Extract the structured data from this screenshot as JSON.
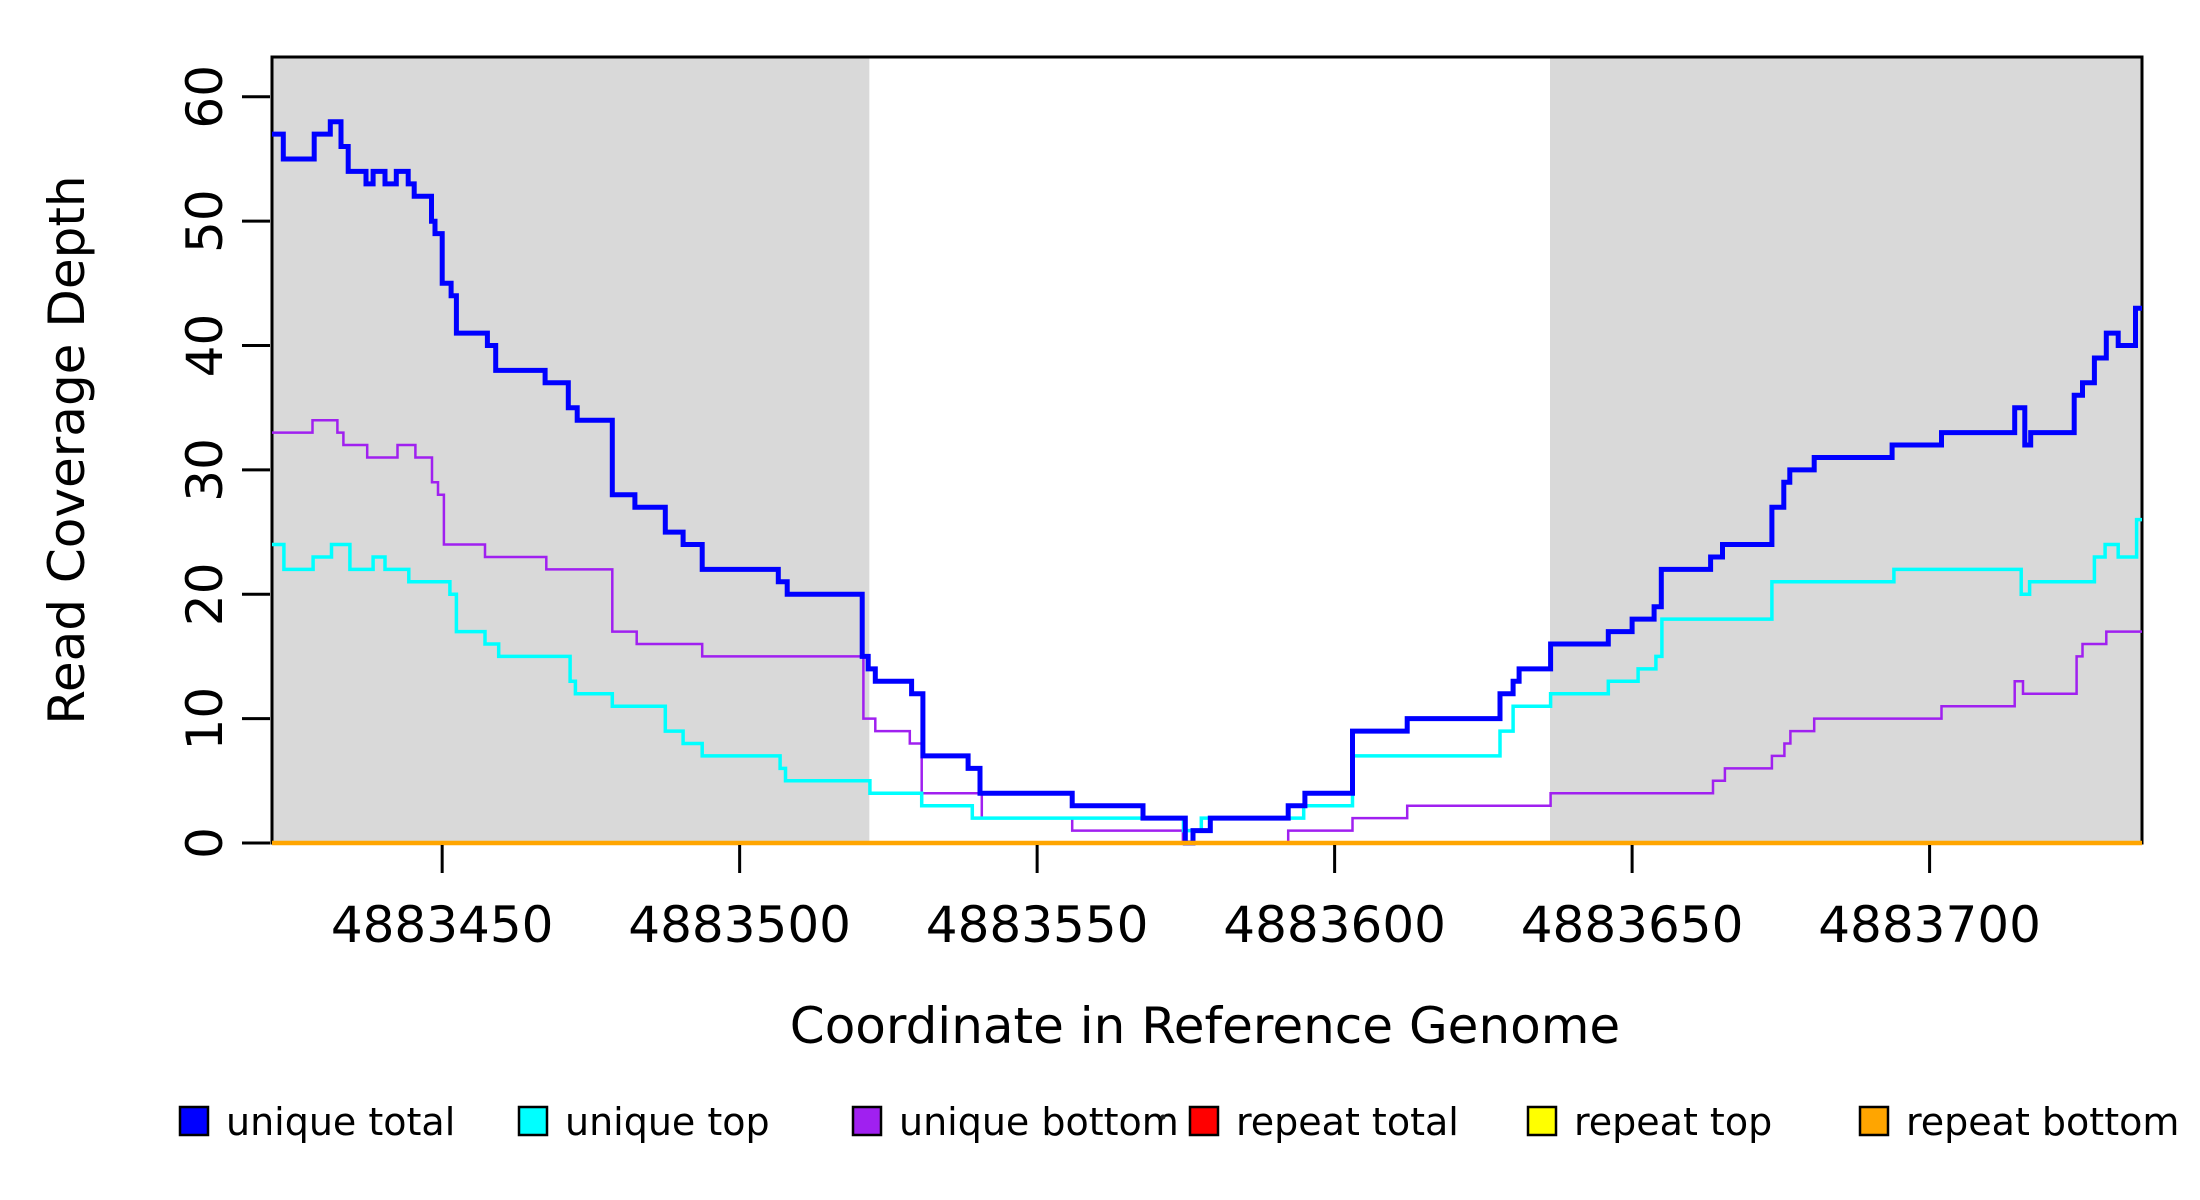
{
  "figure": {
    "background": "#FFFFFF",
    "plot_border_color": "#000000"
  },
  "chart_data": {
    "type": "line",
    "subtype": "step",
    "title": "",
    "xlabel": "Coordinate in Reference Genome",
    "ylabel": "Read Coverage Depth",
    "xlim": [
      4883421.4,
      4883735.7
    ],
    "ylim": [
      0,
      63.2
    ],
    "grid": "off",
    "plot_bg": "#FFFFFF",
    "x_ticks": [
      4883450,
      4883500,
      4883550,
      4883600,
      4883650,
      4883700
    ],
    "x_tick_labels": [
      "4883450",
      "4883500",
      "4883550",
      "4883600",
      "4883650",
      "4883700"
    ],
    "y_ticks": [
      0,
      10,
      20,
      30,
      40,
      50,
      60
    ],
    "y_tick_labels": [
      "0",
      "10",
      "20",
      "30",
      "40",
      "50",
      "60"
    ],
    "shaded_regions": [
      {
        "name": "left-gray-band",
        "x0": 4883421.4,
        "x1": 4883521.8,
        "color": "#D9D9D9"
      },
      {
        "name": "right-gray-band",
        "x0": 4883636.2,
        "x1": 4883735.7,
        "color": "#D9D9D9"
      }
    ],
    "series": [
      {
        "name": "unique bottom",
        "color": "#A020F0",
        "line_width": 2.5,
        "points": [
          [
            4883421.4,
            33
          ],
          [
            4883428.2,
            34
          ],
          [
            4883432.4,
            33
          ],
          [
            4883433.4,
            32
          ],
          [
            4883437.4,
            31
          ],
          [
            4883442.5,
            32
          ],
          [
            4883445.5,
            31
          ],
          [
            4883448.3,
            29
          ],
          [
            4883449.3,
            28
          ],
          [
            4883450.3,
            24
          ],
          [
            4883457.2,
            23
          ],
          [
            4883467.5,
            22
          ],
          [
            4883478.6,
            17
          ],
          [
            4883482.7,
            16
          ],
          [
            4883493.7,
            15
          ],
          [
            4883520.8,
            10
          ],
          [
            4883522.8,
            9
          ],
          [
            4883528.6,
            8
          ],
          [
            4883530.6,
            4
          ],
          [
            4883540.7,
            2
          ],
          [
            4883555.9,
            1
          ],
          [
            4883574.5,
            0
          ],
          [
            4883592.2,
            1
          ],
          [
            4883603.0,
            2
          ],
          [
            4883612.2,
            3
          ],
          [
            4883636.3,
            4
          ],
          [
            4883663.6,
            5
          ],
          [
            4883665.6,
            6
          ],
          [
            4883673.5,
            7
          ],
          [
            4883675.6,
            8
          ],
          [
            4883676.6,
            9
          ],
          [
            4883680.6,
            10
          ],
          [
            4883702.0,
            11
          ],
          [
            4883714.3,
            13
          ],
          [
            4883715.7,
            12
          ],
          [
            4883724.7,
            15
          ],
          [
            4883725.7,
            16
          ],
          [
            4883729.7,
            17
          ]
        ]
      },
      {
        "name": "unique top",
        "color": "#00FFFF",
        "line_width": 3.5,
        "points": [
          [
            4883421.4,
            24
          ],
          [
            4883423.4,
            22
          ],
          [
            4883428.3,
            23
          ],
          [
            4883431.4,
            24
          ],
          [
            4883434.5,
            22
          ],
          [
            4883438.4,
            23
          ],
          [
            4883440.4,
            22
          ],
          [
            4883444.4,
            21
          ],
          [
            4883451.3,
            20
          ],
          [
            4883452.4,
            17
          ],
          [
            4883457.2,
            16
          ],
          [
            4883459.5,
            15
          ],
          [
            4883471.5,
            13
          ],
          [
            4883472.4,
            12
          ],
          [
            4883478.6,
            11
          ],
          [
            4883487.5,
            9
          ],
          [
            4883490.5,
            8
          ],
          [
            4883493.7,
            7
          ],
          [
            4883506.8,
            6
          ],
          [
            4883507.7,
            5
          ],
          [
            4883521.9,
            4
          ],
          [
            4883530.6,
            3
          ],
          [
            4883539.1,
            2
          ],
          [
            4883574.6,
            1
          ],
          [
            4883577.6,
            2
          ],
          [
            4883594.8,
            3
          ],
          [
            4883603.0,
            7
          ],
          [
            4883627.8,
            9
          ],
          [
            4883630.0,
            11
          ],
          [
            4883636.3,
            12
          ],
          [
            4883646.0,
            13
          ],
          [
            4883651.0,
            14
          ],
          [
            4883654.0,
            15
          ],
          [
            4883655.0,
            18
          ],
          [
            4883673.5,
            21
          ],
          [
            4883694.0,
            22
          ],
          [
            4883715.4,
            20
          ],
          [
            4883716.8,
            21
          ],
          [
            4883727.7,
            23
          ],
          [
            4883729.5,
            24
          ],
          [
            4883731.7,
            23
          ],
          [
            4883734.8,
            26
          ]
        ]
      },
      {
        "name": "unique total",
        "color": "#0000FF",
        "line_width": 5,
        "points": [
          [
            4883421.4,
            57
          ],
          [
            4883423.3,
            55
          ],
          [
            4883428.5,
            57
          ],
          [
            4883431.2,
            58
          ],
          [
            4883433.0,
            56
          ],
          [
            4883434.2,
            54
          ],
          [
            4883437.2,
            53
          ],
          [
            4883438.4,
            54
          ],
          [
            4883440.4,
            53
          ],
          [
            4883442.3,
            54
          ],
          [
            4883444.3,
            53
          ],
          [
            4883445.3,
            52
          ],
          [
            4883448.2,
            50
          ],
          [
            4883448.8,
            49
          ],
          [
            4883450.0,
            45
          ],
          [
            4883451.5,
            44
          ],
          [
            4883452.4,
            41
          ],
          [
            4883457.6,
            40
          ],
          [
            4883459.0,
            38
          ],
          [
            4883467.3,
            37
          ],
          [
            4883471.2,
            35
          ],
          [
            4883472.7,
            34
          ],
          [
            4883478.6,
            28
          ],
          [
            4883482.4,
            27
          ],
          [
            4883487.5,
            25
          ],
          [
            4883490.5,
            24
          ],
          [
            4883493.7,
            22
          ],
          [
            4883506.5,
            21
          ],
          [
            4883508.0,
            20
          ],
          [
            4883520.6,
            15
          ],
          [
            4883521.6,
            14
          ],
          [
            4883522.8,
            13
          ],
          [
            4883528.9,
            12
          ],
          [
            4883530.8,
            7
          ],
          [
            4883538.4,
            6
          ],
          [
            4883540.4,
            4
          ],
          [
            4883555.9,
            3
          ],
          [
            4883567.8,
            2
          ],
          [
            4883574.9,
            0
          ],
          [
            4883576.2,
            1
          ],
          [
            4883579.1,
            2
          ],
          [
            4883592.2,
            3
          ],
          [
            4883595.0,
            4
          ],
          [
            4883603.0,
            9
          ],
          [
            4883612.2,
            10
          ],
          [
            4883627.8,
            12
          ],
          [
            4883630.0,
            13
          ],
          [
            4883631.0,
            14
          ],
          [
            4883636.3,
            16
          ],
          [
            4883646.0,
            17
          ],
          [
            4883650.0,
            18
          ],
          [
            4883653.7,
            19
          ],
          [
            4883654.9,
            22
          ],
          [
            4883663.2,
            23
          ],
          [
            4883665.2,
            24
          ],
          [
            4883673.5,
            27
          ],
          [
            4883675.5,
            29
          ],
          [
            4883676.5,
            30
          ],
          [
            4883680.6,
            31
          ],
          [
            4883693.7,
            32
          ],
          [
            4883702.0,
            33
          ],
          [
            4883714.3,
            35
          ],
          [
            4883716.0,
            32
          ],
          [
            4883717.0,
            33
          ],
          [
            4883724.3,
            36
          ],
          [
            4883725.7,
            37
          ],
          [
            4883727.7,
            39
          ],
          [
            4883729.7,
            41
          ],
          [
            4883731.7,
            40
          ],
          [
            4883734.6,
            43
          ]
        ]
      },
      {
        "name": "repeat total",
        "color": "#FF0000",
        "line_width": 3,
        "points": [
          [
            4883421.4,
            0
          ]
        ]
      },
      {
        "name": "repeat top",
        "color": "#FFFF00",
        "line_width": 3,
        "points": [
          [
            4883421.4,
            0
          ]
        ]
      },
      {
        "name": "repeat bottom",
        "color": "#FFA500",
        "line_width": 4.5,
        "points": [
          [
            4883421.4,
            0
          ]
        ]
      }
    ],
    "legend_position": "bottom"
  },
  "legend": {
    "items": [
      {
        "label": "unique total",
        "color": "#0000FF"
      },
      {
        "label": "unique top",
        "color": "#00FFFF"
      },
      {
        "label": "unique bottom",
        "color": "#A020F0"
      },
      {
        "label": "repeat total",
        "color": "#FF0000"
      },
      {
        "label": "repeat top",
        "color": "#FFFF00"
      },
      {
        "label": "repeat bottom",
        "color": "#FFA500"
      }
    ]
  }
}
